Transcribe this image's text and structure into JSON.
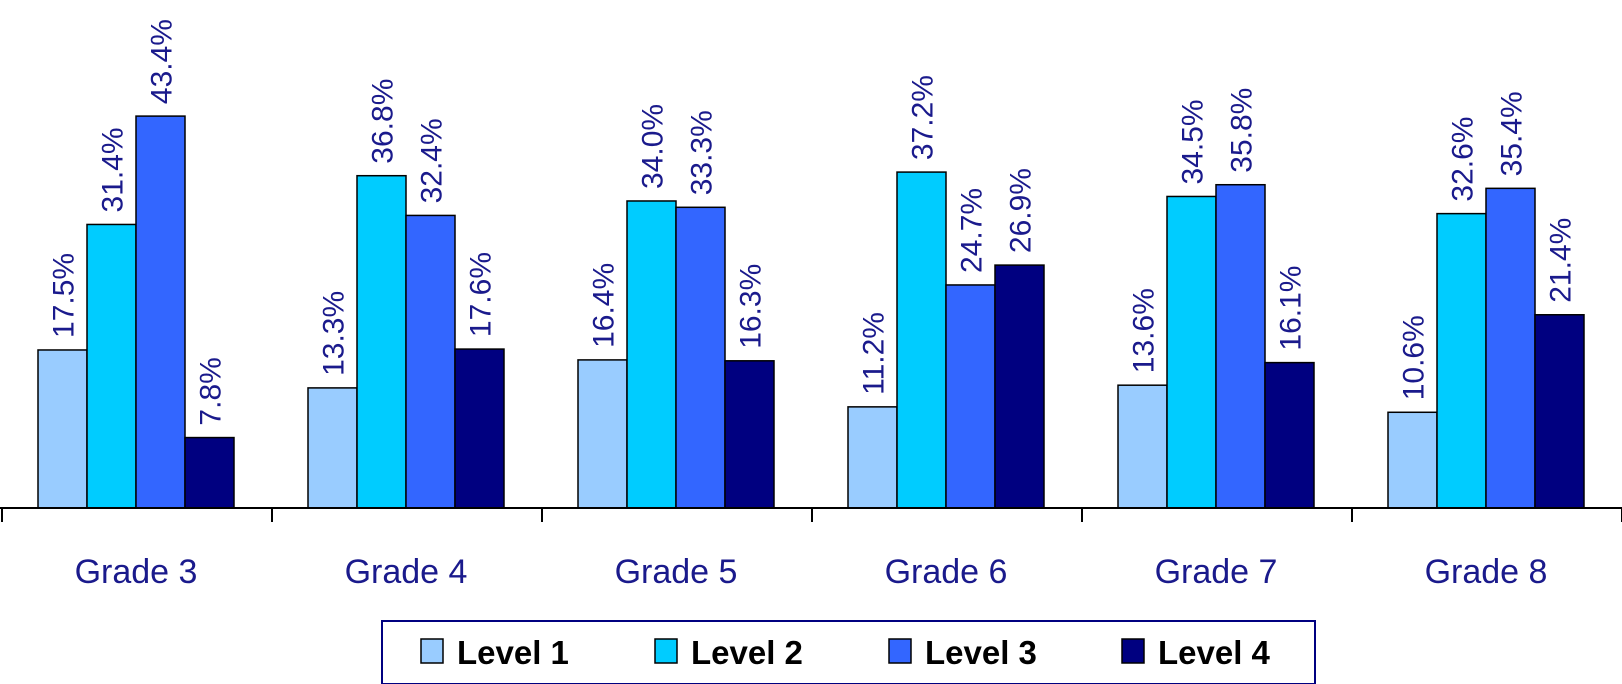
{
  "chart_data": {
    "type": "bar",
    "categories": [
      "Grade 3",
      "Grade 4",
      "Grade 5",
      "Grade 6",
      "Grade 7",
      "Grade 8"
    ],
    "series": [
      {
        "name": "Level 1",
        "color": "#99ccff",
        "values": [
          17.5,
          13.3,
          16.4,
          11.2,
          13.6,
          10.6
        ],
        "labels": [
          "17.5%",
          "13.3%",
          "16.4%",
          "11.2%",
          "13.6%",
          "10.6%"
        ]
      },
      {
        "name": "Level 2",
        "color": "#00ccff",
        "values": [
          31.4,
          36.8,
          34.0,
          37.2,
          34.5,
          32.6
        ],
        "labels": [
          "31.4%",
          "36.8%",
          "34.0%",
          "37.2%",
          "34.5%",
          "32.6%"
        ]
      },
      {
        "name": "Level 3",
        "color": "#3366ff",
        "values": [
          43.4,
          32.4,
          33.3,
          24.7,
          35.8,
          35.4
        ],
        "labels": [
          "43.4%",
          "32.4%",
          "33.3%",
          "24.7%",
          "35.8%",
          "35.4%"
        ]
      },
      {
        "name": "Level 4",
        "color": "#000080",
        "values": [
          7.8,
          17.6,
          16.3,
          26.9,
          16.1,
          21.4
        ],
        "labels": [
          "7.8%",
          "17.6%",
          "16.3%",
          "26.9%",
          "16.1%",
          "21.4%"
        ]
      }
    ],
    "ylim": [
      0,
      50
    ],
    "grid": false,
    "legend_position": "bottom",
    "label_color": "#1a1a8c"
  }
}
